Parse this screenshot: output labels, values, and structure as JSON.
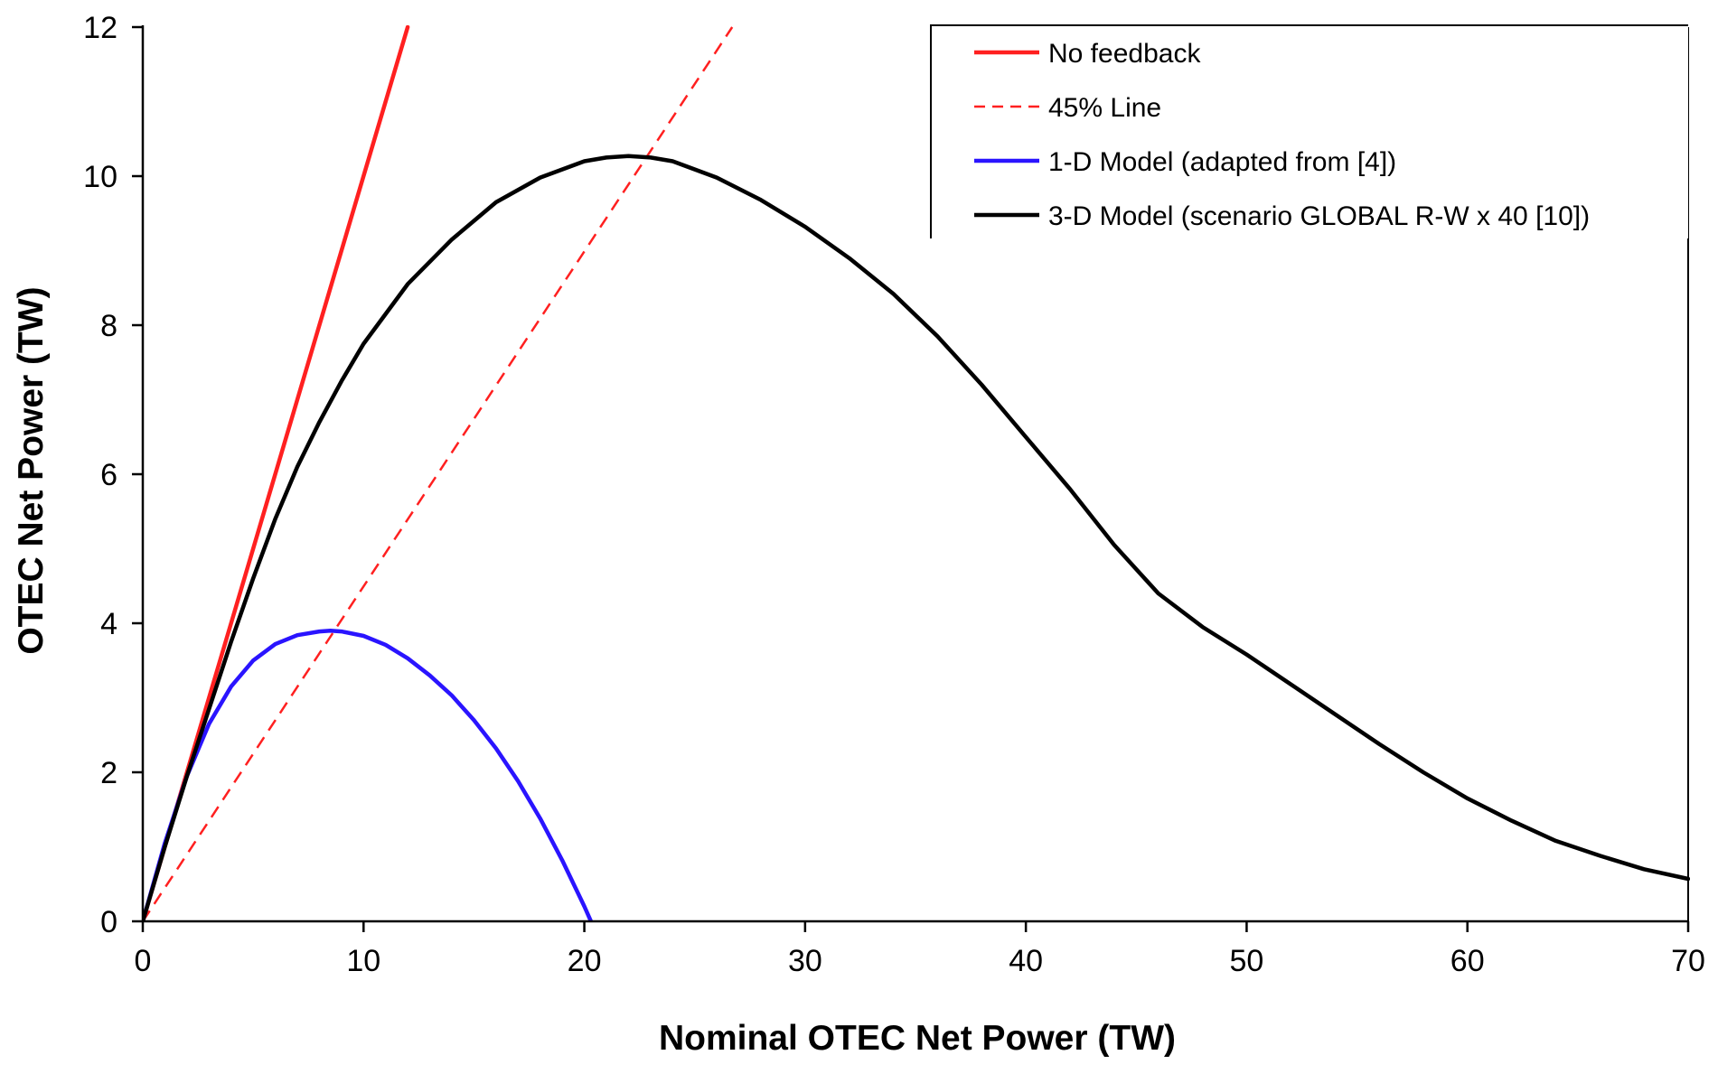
{
  "chart_data": {
    "type": "line",
    "title": "",
    "xlabel": "Nominal OTEC Net Power (TW)",
    "ylabel": "OTEC Net Power (TW)",
    "xlim": [
      0,
      70
    ],
    "ylim": [
      0,
      12
    ],
    "xticks": [
      0,
      10,
      20,
      30,
      40,
      50,
      60,
      70
    ],
    "yticks": [
      0,
      2,
      4,
      6,
      8,
      10,
      12
    ],
    "grid": false,
    "legend_position": "top-right",
    "series": [
      {
        "name": "No feedback",
        "color": "#ff2020",
        "dash": "solid",
        "x": [
          0,
          12
        ],
        "y": [
          0,
          12
        ]
      },
      {
        "name": "45% Line",
        "color": "#ff2020",
        "dash": "dashed",
        "x": [
          0,
          26.7
        ],
        "y": [
          0,
          12
        ]
      },
      {
        "name": "1-D Model (adapted from [4])",
        "color": "#2a14ff",
        "dash": "solid",
        "x": [
          0,
          1,
          2,
          3,
          4,
          5,
          6,
          7,
          8,
          8.5,
          9,
          10,
          11,
          12,
          13,
          14,
          15,
          16,
          17,
          18,
          19,
          20,
          20.3
        ],
        "y": [
          0,
          1.05,
          1.95,
          2.65,
          3.15,
          3.5,
          3.72,
          3.84,
          3.89,
          3.9,
          3.89,
          3.83,
          3.71,
          3.53,
          3.3,
          3.03,
          2.7,
          2.32,
          1.88,
          1.38,
          0.82,
          0.2,
          0
        ]
      },
      {
        "name": "3-D Model (scenario GLOBAL R-W x 40 [10])",
        "color": "#000000",
        "dash": "solid",
        "x": [
          0,
          1,
          2,
          3,
          4,
          5,
          6,
          7,
          8,
          9,
          10,
          12,
          14,
          16,
          18,
          20,
          21,
          22,
          23,
          24,
          26,
          28,
          30,
          32,
          34,
          36,
          38,
          40,
          42,
          44,
          46,
          48,
          50,
          52,
          54,
          56,
          58,
          60,
          62,
          64,
          66,
          68,
          70
        ],
        "y": [
          0,
          1.0,
          1.95,
          2.85,
          3.75,
          4.6,
          5.4,
          6.1,
          6.7,
          7.25,
          7.75,
          8.55,
          9.15,
          9.65,
          9.98,
          10.2,
          10.25,
          10.27,
          10.25,
          10.2,
          9.98,
          9.68,
          9.32,
          8.9,
          8.42,
          7.85,
          7.2,
          6.5,
          5.8,
          5.05,
          4.4,
          3.95,
          3.58,
          3.18,
          2.78,
          2.38,
          2.0,
          1.65,
          1.35,
          1.08,
          0.88,
          0.7,
          0.57
        ]
      }
    ]
  }
}
